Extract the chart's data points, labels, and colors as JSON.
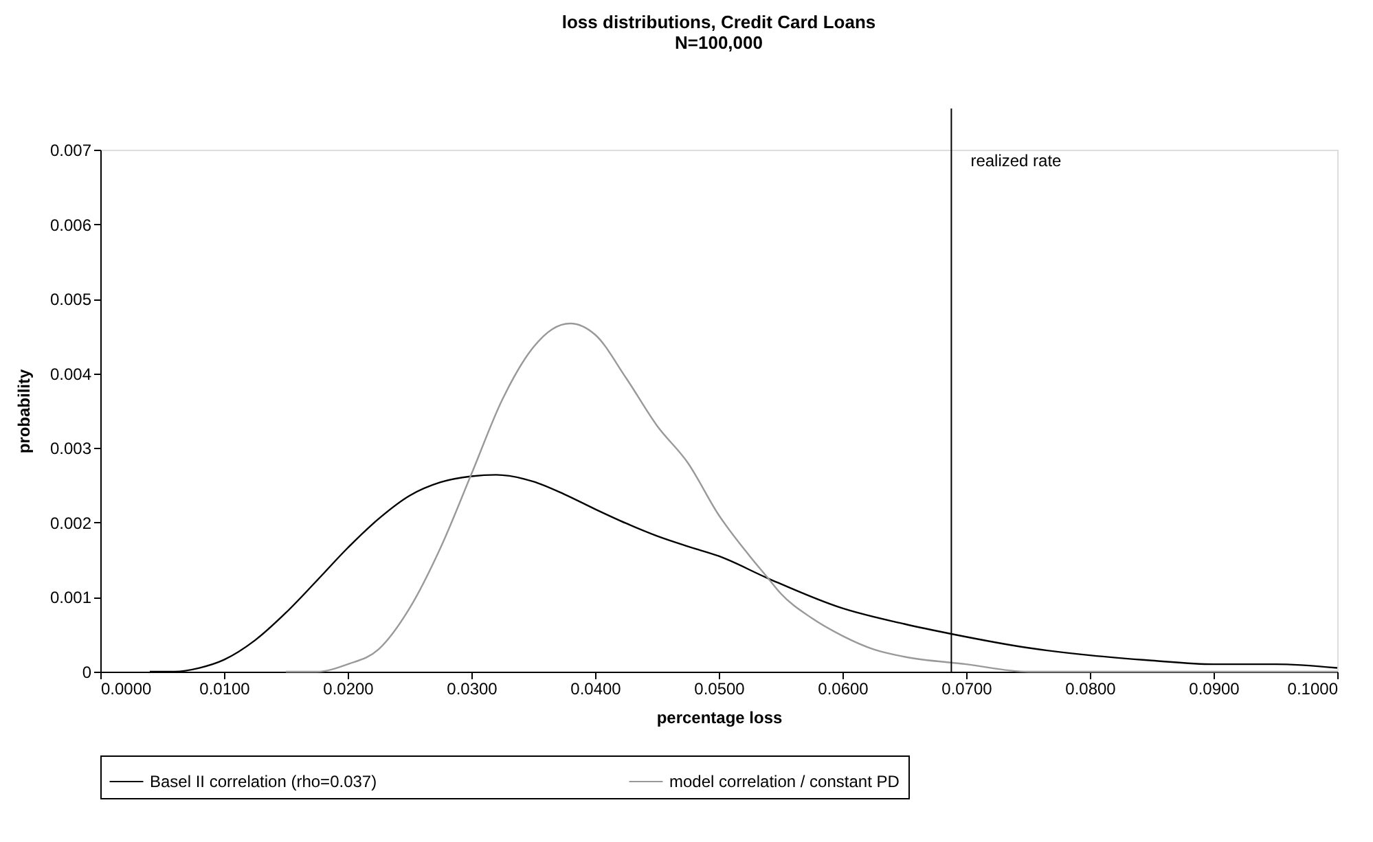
{
  "chart_data": {
    "type": "line",
    "title": "loss distributions, Credit Card Loans",
    "subtitle": "N=100,000",
    "xlabel": "percentage loss",
    "ylabel": "probability",
    "xlim": [
      0,
      0.1
    ],
    "ylim": [
      0,
      0.007
    ],
    "xticks": [
      {
        "value": 0,
        "label": "0.0000"
      },
      {
        "value": 0.01,
        "label": "0.0100"
      },
      {
        "value": 0.02,
        "label": "0.0200"
      },
      {
        "value": 0.03,
        "label": "0.0300"
      },
      {
        "value": 0.04,
        "label": "0.0400"
      },
      {
        "value": 0.05,
        "label": "0.0500"
      },
      {
        "value": 0.06,
        "label": "0.0600"
      },
      {
        "value": 0.07,
        "label": "0.0700"
      },
      {
        "value": 0.08,
        "label": "0.0800"
      },
      {
        "value": 0.09,
        "label": "0.0900"
      },
      {
        "value": 0.1,
        "label": "0.1000"
      }
    ],
    "yticks": [
      {
        "value": 0,
        "label": "0"
      },
      0.001,
      0.002,
      0.003,
      0.004,
      0.005,
      0.006,
      0.007
    ],
    "grid": false,
    "legend": "bottom",
    "marker": "none",
    "line_style": "solid",
    "series": [
      {
        "name": "Basel II correlation (rho=0.037)",
        "color": "#000000",
        "x": [
          0.004,
          0.006,
          0.008,
          0.01,
          0.0125,
          0.015,
          0.0175,
          0.02,
          0.0225,
          0.025,
          0.0275,
          0.03,
          0.032,
          0.035,
          0.0375,
          0.04,
          0.0425,
          0.045,
          0.0475,
          0.05,
          0.054,
          0.06,
          0.065,
          0.069,
          0.075,
          0.08,
          0.085,
          0.09,
          0.095,
          0.1
        ],
        "values": [
          0,
          0,
          5e-05,
          0.00016,
          0.00042,
          0.00079,
          0.00122,
          0.00166,
          0.00205,
          0.00236,
          0.00254,
          0.00262,
          0.00264,
          0.00255,
          0.00238,
          0.00218,
          0.00199,
          0.00182,
          0.00168,
          0.00155,
          0.00125,
          0.00085,
          0.00064,
          0.0005,
          0.00032,
          0.00022,
          0.00015,
          0.0001,
          0.0001,
          5e-05
        ]
      },
      {
        "name": "model correlation / constant PD",
        "color": "#999999",
        "x": [
          0.015,
          0.0175,
          0.02,
          0.0225,
          0.025,
          0.0275,
          0.03,
          0.0325,
          0.035,
          0.0365,
          0.038,
          0.04,
          0.0425,
          0.045,
          0.0475,
          0.05,
          0.0525,
          0.054,
          0.055,
          0.0575,
          0.06,
          0.0625,
          0.065,
          0.07,
          0.075,
          0.08,
          0.09,
          0.1
        ],
        "values": [
          0,
          0,
          0.0001,
          0.0003,
          0.00085,
          0.00166,
          0.00265,
          0.00365,
          0.00435,
          0.00459,
          0.00467,
          0.00452,
          0.00394,
          0.0033,
          0.0028,
          0.0021,
          0.00155,
          0.00125,
          0.00105,
          0.00072,
          0.00048,
          0.0003,
          0.0002,
          0.0001,
          0,
          0,
          0,
          0
        ]
      }
    ],
    "ref_lines": [
      {
        "axis": "x",
        "value": 0.0688,
        "label": "realized rate",
        "color": "#000000"
      }
    ]
  }
}
